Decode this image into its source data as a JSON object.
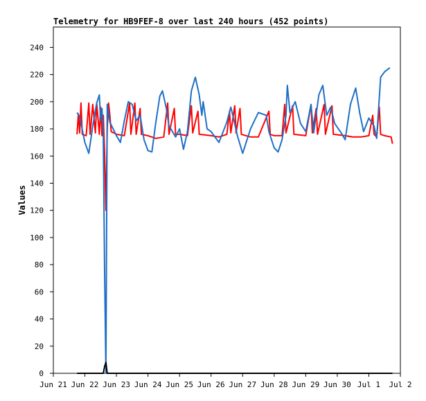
{
  "chart_data": {
    "type": "line",
    "title": "Telemetry for HB9FEF-8 over last 240 hours (452 points)",
    "ylabel": "Values",
    "xlabel": "",
    "ylim": [
      0,
      255
    ],
    "xlim": [
      "2023-06-21",
      "2023-07-02"
    ],
    "y_ticks": [
      0,
      20,
      40,
      60,
      80,
      100,
      120,
      140,
      160,
      180,
      200,
      220,
      240
    ],
    "x_ticks": [
      {
        "date": "2023-06-21",
        "label": "Jun 21"
      },
      {
        "date": "2023-06-22",
        "label": "Jun 22"
      },
      {
        "date": "2023-06-23",
        "label": "Jun 23"
      },
      {
        "date": "2023-06-24",
        "label": "Jun 24"
      },
      {
        "date": "2023-06-25",
        "label": "Jun 25"
      },
      {
        "date": "2023-06-26",
        "label": "Jun 26"
      },
      {
        "date": "2023-06-27",
        "label": "Jun 27"
      },
      {
        "date": "2023-06-28",
        "label": "Jun 28"
      },
      {
        "date": "2023-06-29",
        "label": "Jun 29"
      },
      {
        "date": "2023-06-30",
        "label": "Jun 30"
      },
      {
        "date": "2023-07-01",
        "label": "Jul 1"
      },
      {
        "date": "2023-07-02",
        "label": "Jul 2"
      }
    ],
    "grid": false,
    "legend": "none",
    "series": [
      {
        "color": "#ff0000",
        "points": [
          [
            "2023-06-21T18:00",
            176
          ],
          [
            "2023-06-21T19:00",
            191
          ],
          [
            "2023-06-21T20:00",
            177
          ],
          [
            "2023-06-21T21:00",
            199
          ],
          [
            "2023-06-21T22:00",
            176
          ],
          [
            "2023-06-22T01:00",
            175
          ],
          [
            "2023-06-22T03:00",
            199
          ],
          [
            "2023-06-22T04:00",
            176
          ],
          [
            "2023-06-22T06:00",
            198
          ],
          [
            "2023-06-22T08:00",
            177
          ],
          [
            "2023-06-22T09:00",
            199
          ],
          [
            "2023-06-22T11:00",
            176
          ],
          [
            "2023-06-22T12:00",
            196
          ],
          [
            "2023-06-22T13:00",
            175
          ],
          [
            "2023-06-22T14:00",
            190
          ],
          [
            "2023-06-22T15:00",
            162
          ],
          [
            "2023-06-22T16:00",
            120
          ],
          [
            "2023-06-22T17:00",
            180
          ],
          [
            "2023-06-22T18:00",
            199
          ],
          [
            "2023-06-22T19:00",
            190
          ],
          [
            "2023-06-22T20:00",
            178
          ],
          [
            "2023-06-23T00:00",
            176
          ],
          [
            "2023-06-23T06:00",
            175
          ],
          [
            "2023-06-23T10:00",
            199
          ],
          [
            "2023-06-23T11:00",
            176
          ],
          [
            "2023-06-23T14:00",
            199
          ],
          [
            "2023-06-23T15:00",
            176
          ],
          [
            "2023-06-23T18:00",
            195
          ],
          [
            "2023-06-23T19:00",
            176
          ],
          [
            "2023-06-24T00:00",
            175
          ],
          [
            "2023-06-24T06:00",
            173
          ],
          [
            "2023-06-24T12:00",
            174
          ],
          [
            "2023-06-24T15:00",
            199
          ],
          [
            "2023-06-24T16:00",
            176
          ],
          [
            "2023-06-24T20:00",
            195
          ],
          [
            "2023-06-24T21:00",
            176
          ],
          [
            "2023-06-25T00:00",
            176
          ],
          [
            "2023-06-25T06:00",
            175
          ],
          [
            "2023-06-25T09:00",
            197
          ],
          [
            "2023-06-25T10:00",
            177
          ],
          [
            "2023-06-25T14:00",
            193
          ],
          [
            "2023-06-25T15:00",
            176
          ],
          [
            "2023-06-26T00:00",
            175
          ],
          [
            "2023-06-26T06:00",
            174
          ],
          [
            "2023-06-26T12:00",
            176
          ],
          [
            "2023-06-26T14:00",
            193
          ],
          [
            "2023-06-26T15:00",
            177
          ],
          [
            "2023-06-26T18:00",
            197
          ],
          [
            "2023-06-26T19:00",
            177
          ],
          [
            "2023-06-26T22:00",
            195
          ],
          [
            "2023-06-26T23:00",
            176
          ],
          [
            "2023-06-27T06:00",
            174
          ],
          [
            "2023-06-27T12:00",
            174
          ],
          [
            "2023-06-27T20:00",
            193
          ],
          [
            "2023-06-27T21:00",
            176
          ],
          [
            "2023-06-28T00:00",
            175
          ],
          [
            "2023-06-28T06:00",
            175
          ],
          [
            "2023-06-28T08:00",
            198
          ],
          [
            "2023-06-28T09:00",
            177
          ],
          [
            "2023-06-28T14:00",
            197
          ],
          [
            "2023-06-28T15:00",
            176
          ],
          [
            "2023-06-29T00:00",
            175
          ],
          [
            "2023-06-29T04:00",
            198
          ],
          [
            "2023-06-29T05:00",
            177
          ],
          [
            "2023-06-29T08:00",
            195
          ],
          [
            "2023-06-29T09:00",
            176
          ],
          [
            "2023-06-29T14:00",
            198
          ],
          [
            "2023-06-29T15:00",
            176
          ],
          [
            "2023-06-29T20:00",
            197
          ],
          [
            "2023-06-29T21:00",
            176
          ],
          [
            "2023-06-30T06:00",
            175
          ],
          [
            "2023-06-30T12:00",
            174
          ],
          [
            "2023-06-30T18:00",
            174
          ],
          [
            "2023-07-01T00:00",
            175
          ],
          [
            "2023-07-01T03:00",
            190
          ],
          [
            "2023-07-01T04:00",
            176
          ],
          [
            "2023-07-01T06:00",
            174
          ],
          [
            "2023-07-01T08:00",
            196
          ],
          [
            "2023-07-01T09:00",
            176
          ],
          [
            "2023-07-01T12:00",
            175
          ],
          [
            "2023-07-01T17:00",
            174
          ],
          [
            "2023-07-01T18:00",
            169
          ]
        ]
      },
      {
        "color": "#1e6fc6",
        "points": [
          [
            "2023-06-21T18:00",
            192
          ],
          [
            "2023-06-21T20:00",
            189
          ],
          [
            "2023-06-22T00:00",
            170
          ],
          [
            "2023-06-22T03:00",
            162
          ],
          [
            "2023-06-22T06:00",
            182
          ],
          [
            "2023-06-22T09:00",
            199
          ],
          [
            "2023-06-22T11:00",
            205
          ],
          [
            "2023-06-22T12:00",
            186
          ],
          [
            "2023-06-22T13:00",
            195
          ],
          [
            "2023-06-22T14:00",
            175
          ],
          [
            "2023-06-22T15:00",
            75
          ],
          [
            "2023-06-22T16:00",
            0
          ],
          [
            "2023-06-22T17:00",
            198
          ],
          [
            "2023-06-22T19:00",
            185
          ],
          [
            "2023-06-23T00:00",
            175
          ],
          [
            "2023-06-23T03:00",
            170
          ],
          [
            "2023-06-23T06:00",
            186
          ],
          [
            "2023-06-23T09:00",
            200
          ],
          [
            "2023-06-23T12:00",
            198
          ],
          [
            "2023-06-23T15:00",
            186
          ],
          [
            "2023-06-23T18:00",
            190
          ],
          [
            "2023-06-23T21:00",
            172
          ],
          [
            "2023-06-24T00:00",
            164
          ],
          [
            "2023-06-24T03:00",
            163
          ],
          [
            "2023-06-24T06:00",
            185
          ],
          [
            "2023-06-24T09:00",
            204
          ],
          [
            "2023-06-24T11:00",
            208
          ],
          [
            "2023-06-24T14:00",
            195
          ],
          [
            "2023-06-24T16:00",
            182
          ],
          [
            "2023-06-24T18:00",
            179
          ],
          [
            "2023-06-24T21:00",
            174
          ],
          [
            "2023-06-25T00:00",
            180
          ],
          [
            "2023-06-25T03:00",
            165
          ],
          [
            "2023-06-25T06:00",
            178
          ],
          [
            "2023-06-25T09:00",
            208
          ],
          [
            "2023-06-25T12:00",
            218
          ],
          [
            "2023-06-25T15:00",
            205
          ],
          [
            "2023-06-25T17:00",
            190
          ],
          [
            "2023-06-25T18:00",
            200
          ],
          [
            "2023-06-25T21:00",
            180
          ],
          [
            "2023-06-26T00:00",
            178
          ],
          [
            "2023-06-26T06:00",
            170
          ],
          [
            "2023-06-26T12:00",
            185
          ],
          [
            "2023-06-26T15:00",
            196
          ],
          [
            "2023-06-26T17:00",
            188
          ],
          [
            "2023-06-26T20:00",
            175
          ],
          [
            "2023-06-27T00:00",
            162
          ],
          [
            "2023-06-27T06:00",
            180
          ],
          [
            "2023-06-27T12:00",
            192
          ],
          [
            "2023-06-27T18:00",
            190
          ],
          [
            "2023-06-27T20:00",
            178
          ],
          [
            "2023-06-28T00:00",
            166
          ],
          [
            "2023-06-28T03:00",
            163
          ],
          [
            "2023-06-28T06:00",
            172
          ],
          [
            "2023-06-28T09:00",
            190
          ],
          [
            "2023-06-28T10:00",
            212
          ],
          [
            "2023-06-28T12:00",
            192
          ],
          [
            "2023-06-28T16:00",
            200
          ],
          [
            "2023-06-28T20:00",
            184
          ],
          [
            "2023-06-29T00:00",
            178
          ],
          [
            "2023-06-29T04:00",
            198
          ],
          [
            "2023-06-29T06:00",
            177
          ],
          [
            "2023-06-29T10:00",
            205
          ],
          [
            "2023-06-29T13:00",
            212
          ],
          [
            "2023-06-29T16:00",
            190
          ],
          [
            "2023-06-29T19:00",
            196
          ],
          [
            "2023-06-29T22:00",
            184
          ],
          [
            "2023-06-30T03:00",
            177
          ],
          [
            "2023-06-30T06:00",
            172
          ],
          [
            "2023-06-30T10:00",
            198
          ],
          [
            "2023-06-30T14:00",
            210
          ],
          [
            "2023-06-30T17:00",
            192
          ],
          [
            "2023-06-30T20:00",
            178
          ],
          [
            "2023-07-01T00:00",
            188
          ],
          [
            "2023-07-01T04:00",
            182
          ],
          [
            "2023-07-01T06:00",
            173
          ],
          [
            "2023-07-01T09:00",
            218
          ],
          [
            "2023-07-01T12:00",
            222
          ],
          [
            "2023-07-01T16:00",
            225
          ]
        ]
      },
      {
        "color": "#000000",
        "points": [
          [
            "2023-06-21T18:00",
            0
          ],
          [
            "2023-06-22T14:00",
            0
          ],
          [
            "2023-06-22T15:00",
            5
          ],
          [
            "2023-06-22T16:00",
            8
          ],
          [
            "2023-06-22T17:00",
            0
          ],
          [
            "2023-07-01T18:00",
            0
          ]
        ]
      }
    ]
  }
}
